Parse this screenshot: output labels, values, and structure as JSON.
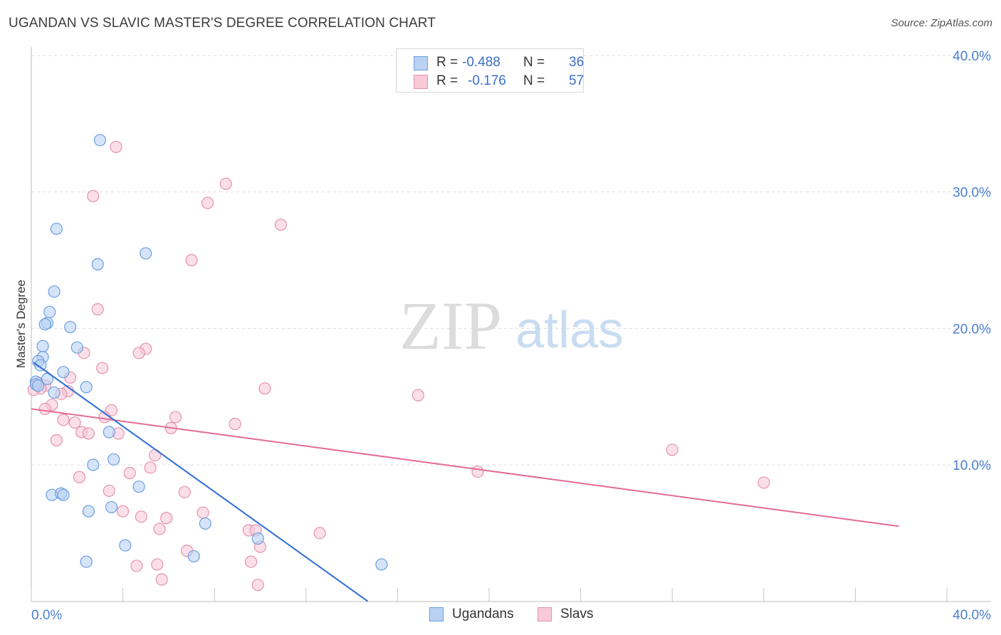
{
  "title": "UGANDAN VS SLAVIC MASTER'S DEGREE CORRELATION CHART",
  "source": "Source: ZipAtlas.com",
  "watermark": {
    "zip": "ZIP",
    "atlas": "atlas"
  },
  "colors": {
    "blue_fill": "#b9d2f4",
    "blue_stroke": "#6b9ee0",
    "blue_line": "#2f6fd6",
    "pink_fill": "#f9c9d8",
    "pink_stroke": "#e592ad",
    "pink_line": "#e46b95",
    "axis_text": "#4a7fd0",
    "grid": "#dcdcdc"
  },
  "legend": {
    "rows": [
      {
        "series": "Ugandans",
        "r_label": "R =",
        "r_value": "-0.488",
        "n_label": "N =",
        "n_value": "36"
      },
      {
        "series": "Slavs",
        "r_label": "R =",
        "r_value": "-0.176",
        "n_label": "N =",
        "n_value": "57"
      }
    ]
  },
  "chart_data": {
    "type": "scatter",
    "title": "UGANDAN VS SLAVIC MASTER'S DEGREE CORRELATION CHART",
    "xlabel": "",
    "ylabel": "Master's Degree",
    "xlim": [
      0,
      40
    ],
    "ylim": [
      0,
      41
    ],
    "x_tick_labels": [
      "0.0%",
      "40.0%"
    ],
    "y_ticks": [
      10,
      20,
      30,
      40
    ],
    "y_tick_labels": [
      "10.0%",
      "20.0%",
      "30.0%",
      "40.0%"
    ],
    "grid": true,
    "legend_position": "bottom-center",
    "series": [
      {
        "name": "Ugandans",
        "trend": {
          "x": [
            0.1,
            14.7
          ],
          "y": [
            17.5,
            0.0
          ]
        },
        "points": [
          [
            3.0,
            33.8
          ],
          [
            1.1,
            27.3
          ],
          [
            5.0,
            25.5
          ],
          [
            2.9,
            24.7
          ],
          [
            1.0,
            22.7
          ],
          [
            0.8,
            21.2
          ],
          [
            0.7,
            20.4
          ],
          [
            0.6,
            20.3
          ],
          [
            1.7,
            20.1
          ],
          [
            2.0,
            18.6
          ],
          [
            0.5,
            18.7
          ],
          [
            0.5,
            17.9
          ],
          [
            0.3,
            17.6
          ],
          [
            0.4,
            17.3
          ],
          [
            1.4,
            16.8
          ],
          [
            0.7,
            16.3
          ],
          [
            0.2,
            16.1
          ],
          [
            0.2,
            15.9
          ],
          [
            0.3,
            15.8
          ],
          [
            2.4,
            15.7
          ],
          [
            1.0,
            15.3
          ],
          [
            3.4,
            12.4
          ],
          [
            2.7,
            10.0
          ],
          [
            3.6,
            10.4
          ],
          [
            4.7,
            8.4
          ],
          [
            0.9,
            7.8
          ],
          [
            1.3,
            7.9
          ],
          [
            1.4,
            7.8
          ],
          [
            3.5,
            6.9
          ],
          [
            2.5,
            6.6
          ],
          [
            7.6,
            5.7
          ],
          [
            9.9,
            4.6
          ],
          [
            4.1,
            4.1
          ],
          [
            7.1,
            3.3
          ],
          [
            2.4,
            2.9
          ],
          [
            15.3,
            2.7
          ]
        ]
      },
      {
        "name": "Slavs",
        "trend": {
          "x": [
            0.0,
            37.9
          ],
          "y": [
            14.1,
            5.5
          ]
        },
        "points": [
          [
            3.7,
            33.3
          ],
          [
            2.7,
            29.7
          ],
          [
            8.5,
            30.6
          ],
          [
            7.7,
            29.2
          ],
          [
            10.9,
            27.6
          ],
          [
            7.0,
            25.0
          ],
          [
            2.9,
            21.4
          ],
          [
            5.0,
            18.5
          ],
          [
            4.7,
            18.2
          ],
          [
            2.3,
            18.2
          ],
          [
            3.1,
            17.1
          ],
          [
            1.7,
            16.4
          ],
          [
            0.3,
            16.0
          ],
          [
            0.6,
            15.8
          ],
          [
            0.4,
            15.6
          ],
          [
            1.6,
            15.4
          ],
          [
            10.2,
            15.6
          ],
          [
            16.9,
            15.1
          ],
          [
            1.3,
            15.2
          ],
          [
            0.9,
            14.4
          ],
          [
            0.6,
            14.1
          ],
          [
            3.5,
            14.0
          ],
          [
            3.2,
            13.5
          ],
          [
            6.3,
            13.5
          ],
          [
            1.4,
            13.3
          ],
          [
            1.9,
            13.1
          ],
          [
            8.9,
            13.0
          ],
          [
            6.1,
            12.7
          ],
          [
            2.2,
            12.4
          ],
          [
            2.5,
            12.3
          ],
          [
            3.8,
            12.3
          ],
          [
            1.1,
            11.8
          ],
          [
            28.0,
            11.1
          ],
          [
            5.4,
            10.7
          ],
          [
            5.2,
            9.8
          ],
          [
            4.3,
            9.4
          ],
          [
            19.5,
            9.5
          ],
          [
            2.1,
            9.1
          ],
          [
            32.0,
            8.7
          ],
          [
            3.4,
            8.1
          ],
          [
            6.7,
            8.0
          ],
          [
            7.5,
            6.5
          ],
          [
            4.0,
            6.6
          ],
          [
            4.8,
            6.2
          ],
          [
            5.9,
            6.1
          ],
          [
            5.6,
            5.3
          ],
          [
            9.5,
            5.2
          ],
          [
            9.8,
            5.2
          ],
          [
            12.6,
            5.0
          ],
          [
            10.0,
            4.0
          ],
          [
            6.8,
            3.7
          ],
          [
            9.6,
            2.9
          ],
          [
            4.6,
            2.6
          ],
          [
            5.5,
            2.7
          ],
          [
            5.7,
            1.6
          ],
          [
            9.9,
            1.2
          ],
          [
            0.1,
            15.5
          ]
        ]
      }
    ]
  }
}
